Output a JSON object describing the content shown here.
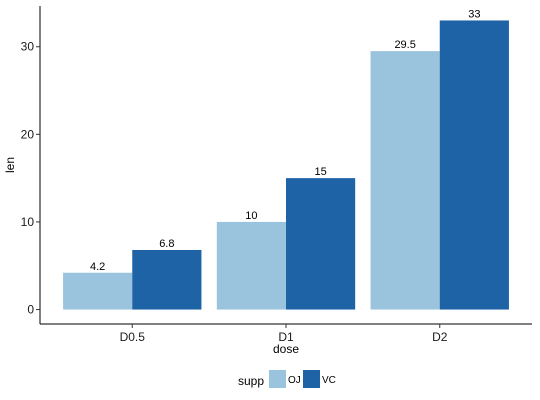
{
  "chart_data": {
    "type": "bar",
    "categories": [
      "D0.5",
      "D1",
      "D2"
    ],
    "series": [
      {
        "name": "OJ",
        "values": [
          4.2,
          10,
          29.5
        ],
        "color": "#9ac4de",
        "labels": [
          "4.2",
          "10",
          "29.5"
        ]
      },
      {
        "name": "VC",
        "values": [
          6.8,
          15,
          33
        ],
        "color": "#1f63a7",
        "labels": [
          "6.8",
          "15",
          "33"
        ]
      }
    ],
    "xlabel": "dose",
    "ylabel": "len",
    "ylim": [
      -1.65,
      34.65
    ],
    "yticks": [
      0,
      10,
      20,
      30
    ],
    "legend": {
      "title": "supp",
      "position": "bottom"
    },
    "grid": false
  }
}
